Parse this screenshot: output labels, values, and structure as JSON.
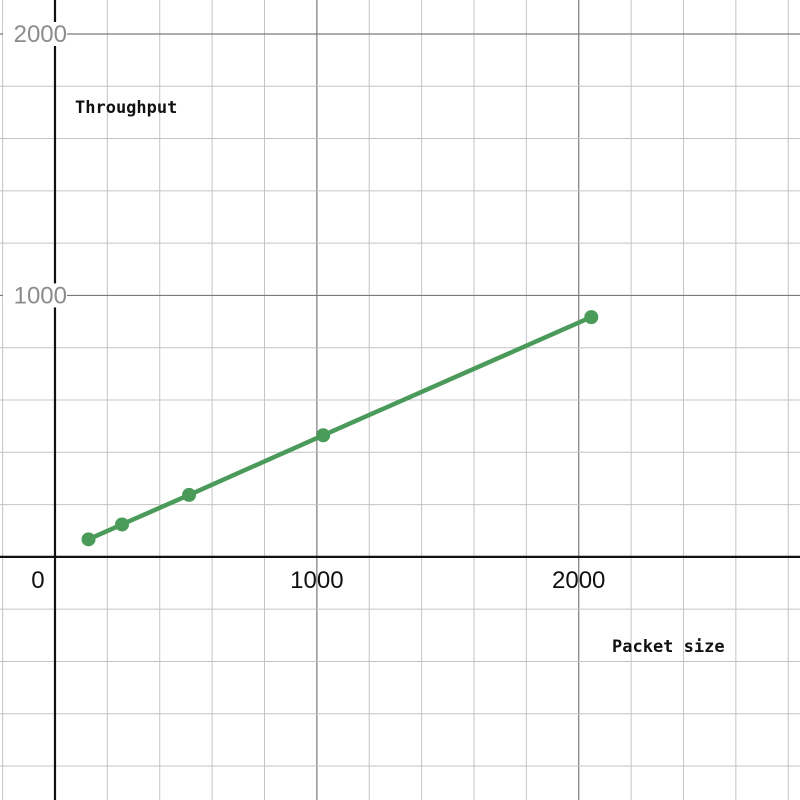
{
  "chart_data": {
    "type": "line",
    "title": "",
    "xlabel": "Packet size",
    "ylabel": "Throughput",
    "xlim": [
      -210,
      2845
    ],
    "ylim": [
      -930,
      2130
    ],
    "grid": true,
    "x_ticks": [
      {
        "value": 0,
        "label": "0"
      },
      {
        "value": 1000,
        "label": "1000"
      },
      {
        "value": 2000,
        "label": "2000"
      }
    ],
    "y_ticks": [
      {
        "value": 1000,
        "label": "1000"
      },
      {
        "value": 2000,
        "label": "2000"
      }
    ],
    "series": [
      {
        "color": "#4a9a5a",
        "x": [
          128,
          256,
          512,
          1024,
          2048
        ],
        "y": [
          67,
          124,
          237,
          465,
          917
        ]
      }
    ]
  }
}
